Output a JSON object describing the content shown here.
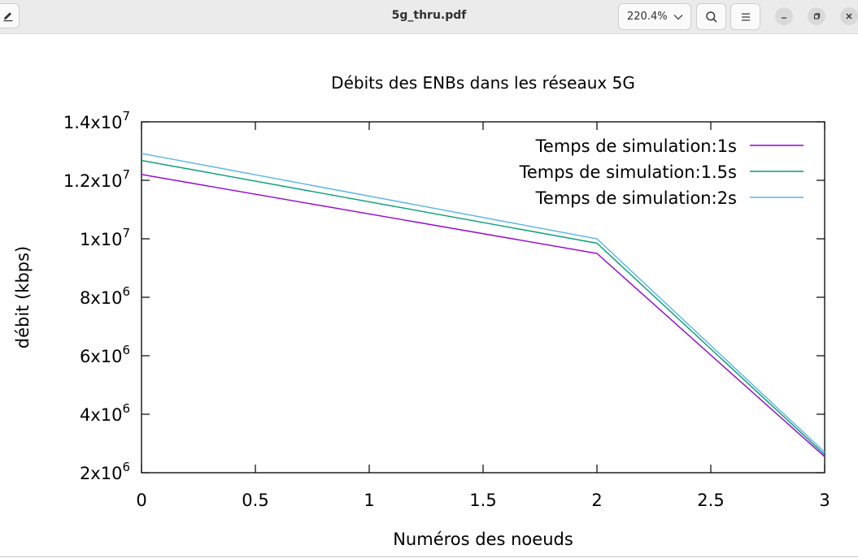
{
  "window": {
    "title": "5g_thru.pdf",
    "zoom": "220.4%",
    "icons": [
      "edit-icon",
      "chevron-down-icon",
      "search-icon",
      "hamburger-menu-icon",
      "minimize-icon",
      "maximize-icon",
      "close-icon"
    ]
  },
  "chart_data": {
    "type": "line",
    "title": "Débits des ENBs dans les réseaux 5G",
    "xlabel": "Numéros des noeuds",
    "ylabel": "débit (kbps)",
    "xlim": [
      0,
      3
    ],
    "ylim": [
      2000000,
      14000000
    ],
    "x_ticks": [
      {
        "value": 0,
        "label": "0"
      },
      {
        "value": 0.5,
        "label": "0.5"
      },
      {
        "value": 1,
        "label": "1"
      },
      {
        "value": 1.5,
        "label": "1.5"
      },
      {
        "value": 2,
        "label": "2"
      },
      {
        "value": 2.5,
        "label": "2.5"
      },
      {
        "value": 3,
        "label": "3"
      }
    ],
    "y_ticks": [
      {
        "value": 2000000,
        "mantissa": "2x10",
        "exp": "6"
      },
      {
        "value": 4000000,
        "mantissa": "4x10",
        "exp": "6"
      },
      {
        "value": 6000000,
        "mantissa": "6x10",
        "exp": "6"
      },
      {
        "value": 8000000,
        "mantissa": "8x10",
        "exp": "6"
      },
      {
        "value": 10000000,
        "mantissa": "1x10",
        "exp": "7"
      },
      {
        "value": 12000000,
        "mantissa": "1.2x10",
        "exp": "7"
      },
      {
        "value": 14000000,
        "mantissa": "1.4x10",
        "exp": "7"
      }
    ],
    "x": [
      0,
      2,
      3
    ],
    "series": [
      {
        "name": "Temps de simulation:1s",
        "color": "#9400d3",
        "values": [
          12200000,
          9500000,
          2550000
        ]
      },
      {
        "name": "Temps de simulation:1.5s",
        "color": "#009e73",
        "values": [
          12680000,
          9850000,
          2620000
        ]
      },
      {
        "name": "Temps de simulation:2s",
        "color": "#56b4e9",
        "values": [
          12920000,
          10000000,
          2700000
        ]
      }
    ],
    "legend_position": "top-right",
    "grid": false
  }
}
